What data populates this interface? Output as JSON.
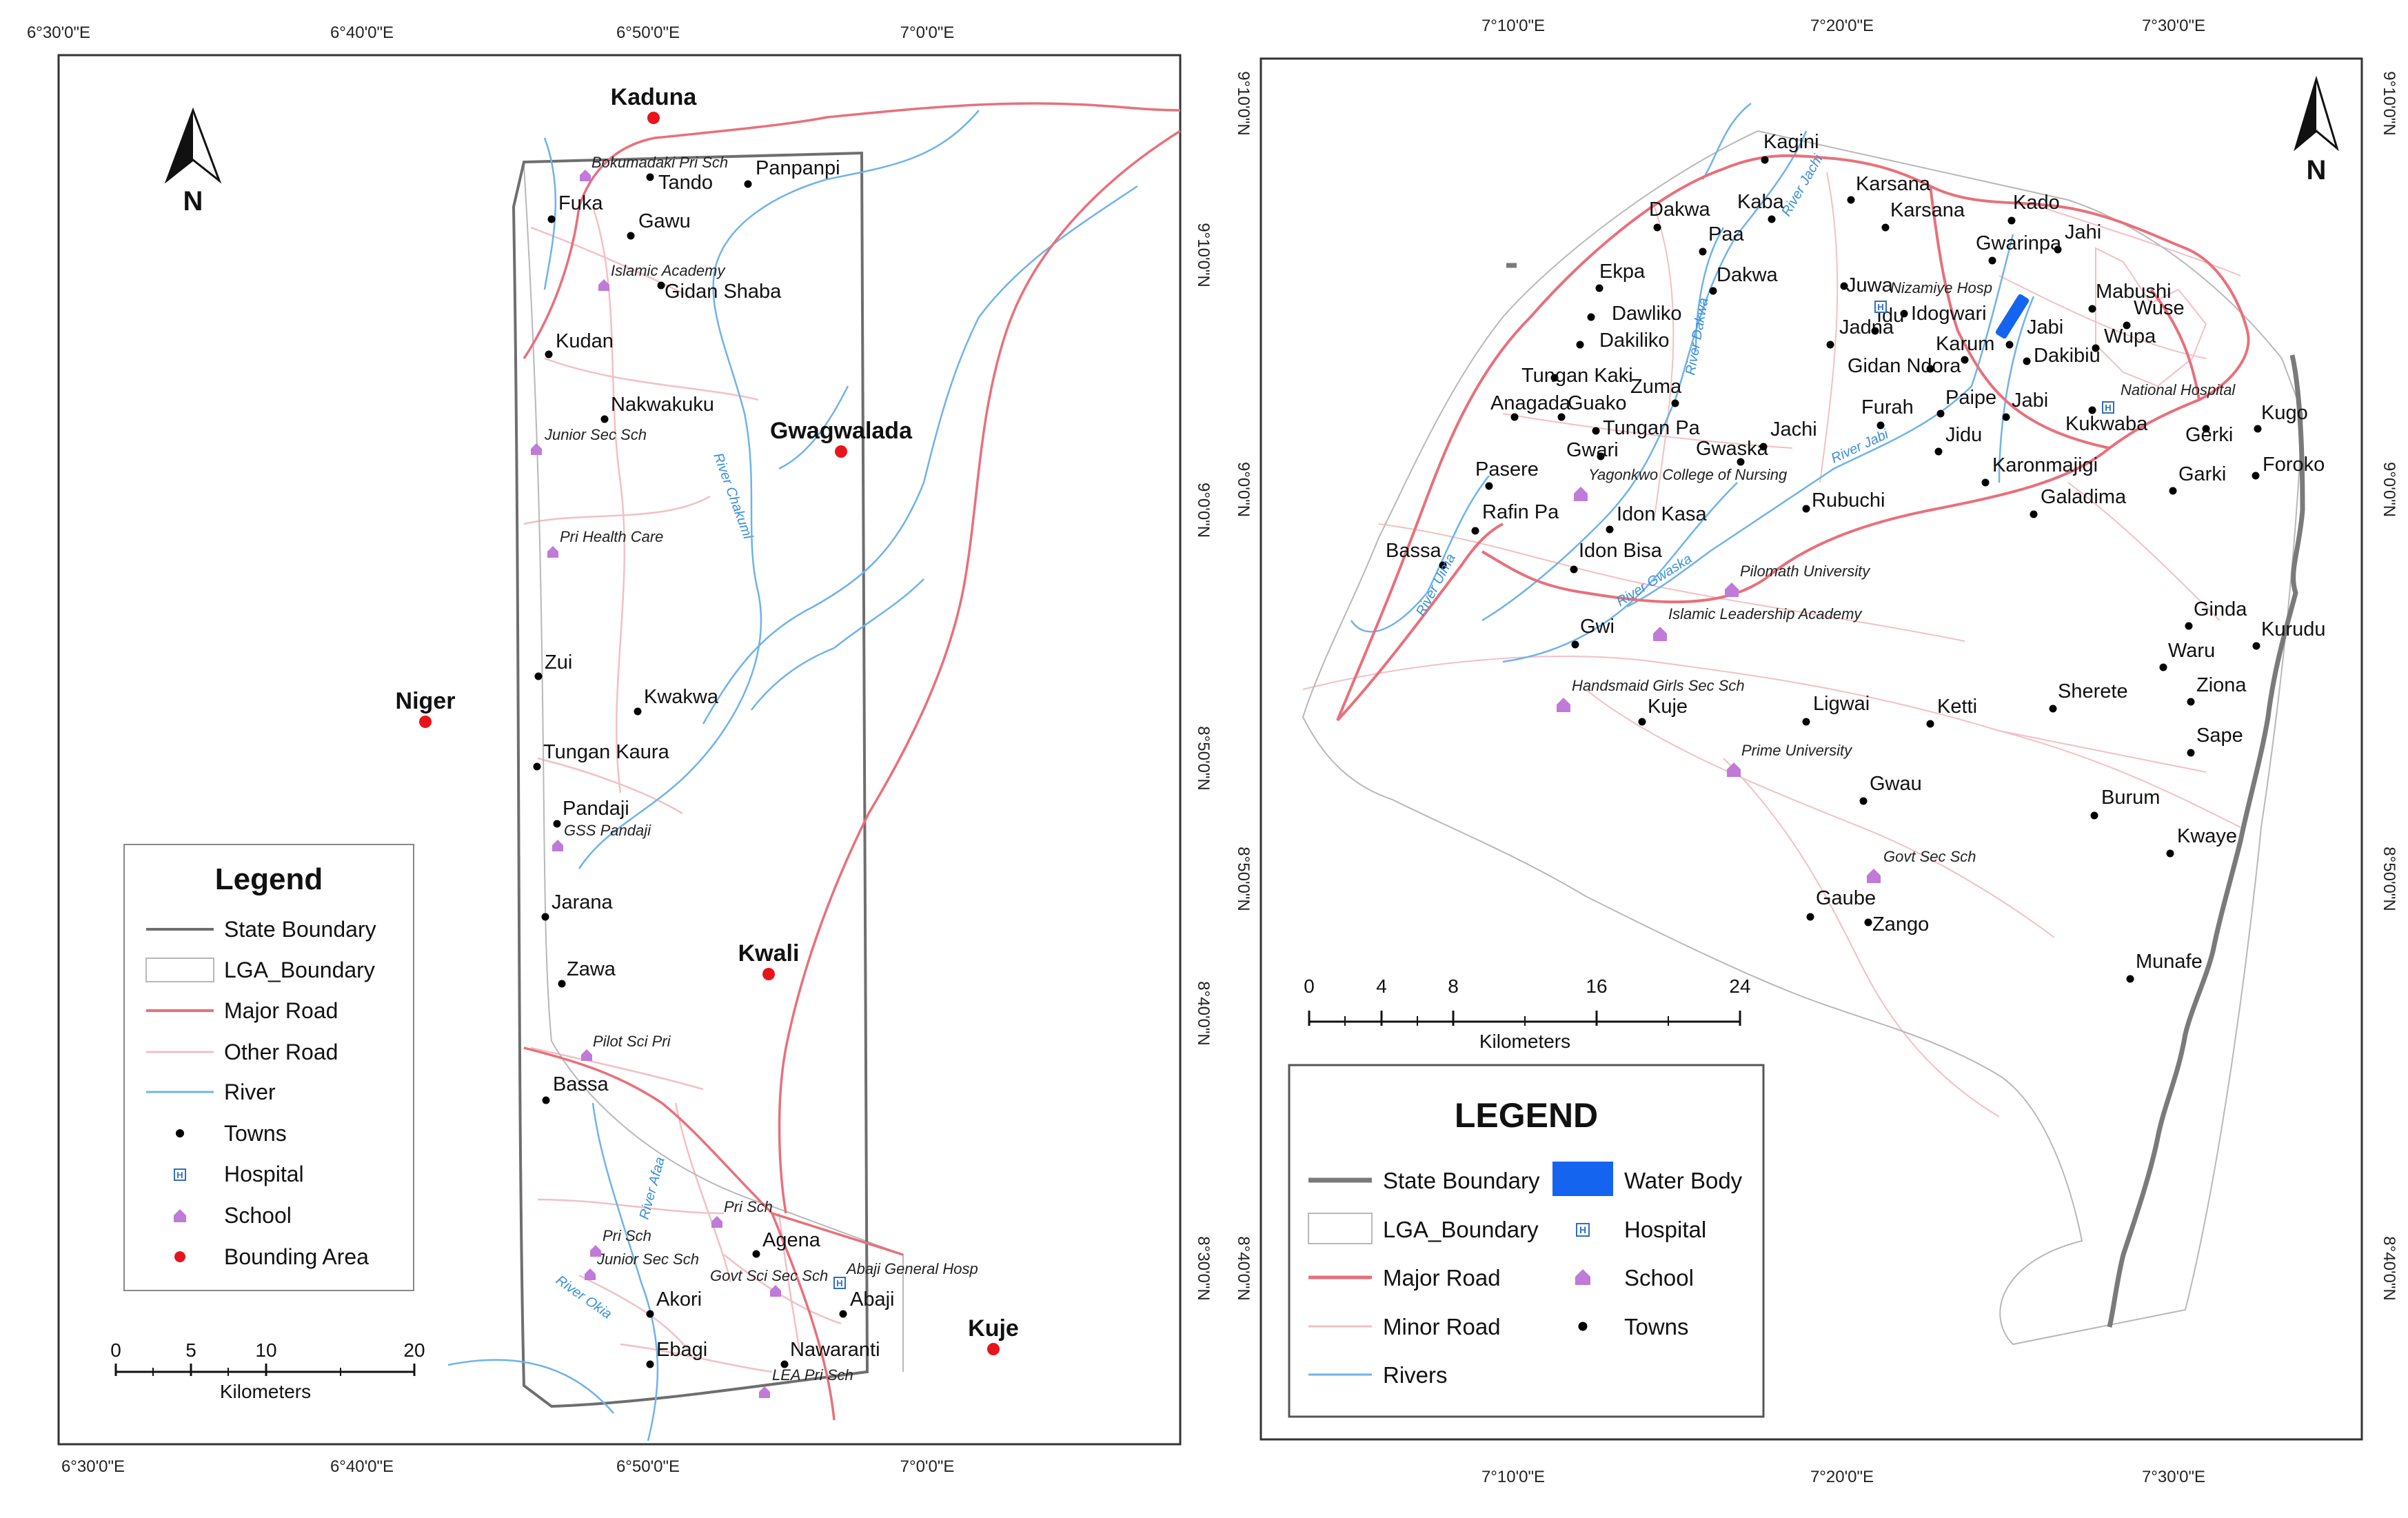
{
  "left_map": {
    "coords_top": [
      "6°30'0\"E",
      "6°40'0\"E",
      "6°50'0\"E",
      "7°0'0\"E"
    ],
    "coords_bottom": [
      "6°30'0\"E",
      "6°40'0\"E",
      "6°50'0\"E",
      "7°0'0\"E"
    ],
    "coords_right": [
      "9°10'0\"N",
      "9°0'0\"N",
      "8°50'0\"N",
      "8°40'0\"N",
      "8°30'0\"N"
    ],
    "bounding_areas": [
      "Kaduna",
      "Gwagwalada",
      "Niger",
      "Kwali",
      "Kuje"
    ],
    "towns": [
      "Tando",
      "Panpanpi",
      "Fuka",
      "Gawu",
      "Gidan Shaba",
      "Kudan",
      "Nakwakuku",
      "Zui",
      "Kwakwa",
      "Tungan Kaura",
      "Pandaji",
      "Jarana",
      "Zawa",
      "Bassa",
      "Agena",
      "Akori",
      "Abaji",
      "Ebagi",
      "Nawaranti"
    ],
    "schools": [
      "Bokumadaki Pri Sch",
      "Islamic Academy",
      "Junior Sec Sch",
      "Pri Health Care",
      "GSS Pandaji",
      "Pilot Sci Pri",
      "Pri Sch",
      "Pri Sch",
      "Junior Sec Sch",
      "Govt Sci Sec Sch",
      "LEA Pri Sch"
    ],
    "hospitals": [
      "Abaji General Hosp"
    ],
    "rivers": [
      "River Chakumi",
      "River Afaa",
      "River Okia"
    ],
    "north": "N",
    "legend": {
      "title": "Legend",
      "items": [
        "State Boundary",
        "LGA_Boundary",
        "Major Road",
        "Other Road",
        "River",
        "Towns",
        "Hospital",
        "School",
        "Bounding Area"
      ]
    },
    "scale": {
      "ticks": [
        "0",
        "5",
        "10",
        "20"
      ],
      "unit": "Kilometers"
    }
  },
  "right_map": {
    "coords_top": [
      "7°10'0\"E",
      "7°20'0\"E",
      "7°30'0\"E"
    ],
    "coords_bottom": [
      "7°10'0\"E",
      "7°20'0\"E",
      "7°30'0\"E"
    ],
    "coords_left": [
      "9°10'0\"N",
      "9°0'0\"N",
      "8°50'0\"N",
      "8°40'0\"N"
    ],
    "coords_right": [
      "9°10'0\"N",
      "9°0'0\"N",
      "8°50'0\"N",
      "8°40'0\"N"
    ],
    "towns": [
      "Kagini",
      "Karsana",
      "Karsana",
      "Kaba",
      "Dakwa",
      "Paa",
      "Dakwa",
      "Kado",
      "Jahi",
      "Gwarinpa",
      "Ekpa",
      "Juwa",
      "Mabushi",
      "Wuse",
      "Dawliko",
      "Idogwari",
      "Jadna",
      "Idu",
      "Jabi",
      "Wupa",
      "Dakiliko",
      "Karum",
      "Dakibiu",
      "Gidan Ndora",
      "Tungan Kaki",
      "Zuma",
      "Anagada",
      "Guako",
      "Furah",
      "Paipe",
      "Jabi",
      "Kukwaba",
      "Kugo",
      "Tungan Pa",
      "Jachi",
      "Jidu",
      "Gerki",
      "Gwari",
      "Gwaska",
      "Foroko",
      "Pasere",
      "Karonmajigi",
      "Garki",
      "Rubuchi",
      "Galadima",
      "Rafin Pa",
      "Idon Kasa",
      "Idon Bisa",
      "Bassa",
      "Gwi",
      "Ginda",
      "Kurudu",
      "Waru",
      "Ziona",
      "Sherete",
      "Kuje",
      "Ligwai",
      "Ketti",
      "Sape",
      "Gwau",
      "Burum",
      "Kwaye",
      "Gaube",
      "Zango",
      "Munafe"
    ],
    "schools": [
      "Yagonkwo College of Nursing",
      "Pilomath University",
      "Islamic Leadership Academy",
      "Handsmaid Girls Sec Sch",
      "Prime University",
      "Govt Sec Sch"
    ],
    "hospitals": [
      "Nizamiye Hosp",
      "National Hospital"
    ],
    "rivers": [
      "River Jachi",
      "River Dakwa",
      "River Jabi",
      "River Gwaska",
      "River Uima"
    ],
    "north": "N",
    "legend": {
      "title": "LEGEND",
      "col1": [
        "State Boundary",
        "LGA_Boundary",
        "Major Road",
        "Minor Road",
        "Rivers"
      ],
      "col2": [
        "Water Body",
        "Hospital",
        "School",
        "Towns"
      ]
    },
    "scale": {
      "ticks": [
        "0",
        "4",
        "8",
        "16",
        "24"
      ],
      "unit": "Kilometers"
    }
  },
  "colors": {
    "state_boundary": "#6e6e6e",
    "lga_boundary": "#b8b8b8",
    "major_road": "#e8707a",
    "minor_road": "#f2c0c4",
    "river": "#6fb2ea",
    "school": "#c07ad8",
    "hospital": "#2f6fb8",
    "bounding_area": "#e8141c",
    "water_body": "#1464f0",
    "towns": "#000000"
  }
}
